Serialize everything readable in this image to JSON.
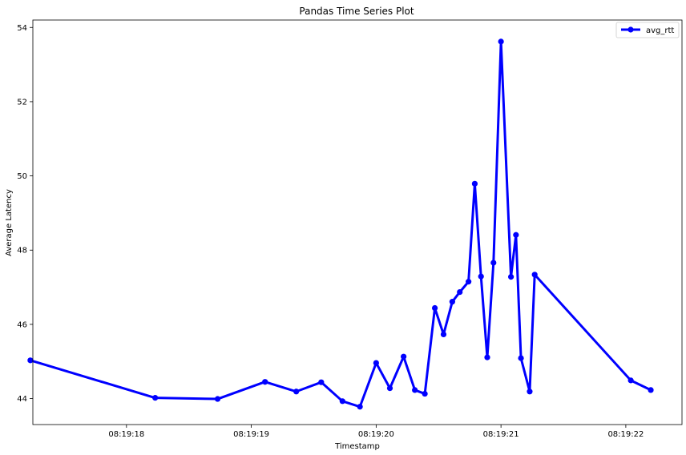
{
  "chart_data": {
    "type": "line",
    "title": "Pandas Time Series Plot",
    "xlabel": "Timestamp",
    "ylabel": "Average Latency",
    "xlim": [
      "08:19:17.25",
      "08:19:22.45"
    ],
    "ylim": [
      43.3,
      54.2
    ],
    "x_ticks": [
      "08:19:18",
      "08:19:19",
      "08:19:20",
      "08:19:21",
      "08:19:22"
    ],
    "y_ticks": [
      44,
      46,
      48,
      50,
      52,
      54
    ],
    "legend_position": "top-right",
    "grid": false,
    "series": [
      {
        "name": "avg_rtt",
        "color": "#0000ff",
        "marker": "circle",
        "x": [
          "08:19:17.230",
          "08:19:18.230",
          "08:19:18.730",
          "08:19:19.110",
          "08:19:19.360",
          "08:19:19.560",
          "08:19:19.730",
          "08:19:19.870",
          "08:19:20.000",
          "08:19:20.110",
          "08:19:20.220",
          "08:19:20.310",
          "08:19:20.390",
          "08:19:20.470",
          "08:19:20.540",
          "08:19:20.610",
          "08:19:20.670",
          "08:19:20.740",
          "08:19:20.790",
          "08:19:20.840",
          "08:19:20.890",
          "08:19:20.940",
          "08:19:21.000",
          "08:19:21.080",
          "08:19:21.120",
          "08:19:21.160",
          "08:19:21.230",
          "08:19:21.270",
          "08:19:22.040",
          "08:19:22.200"
        ],
        "values": [
          45.03,
          44.02,
          43.99,
          44.45,
          44.19,
          44.44,
          43.93,
          43.78,
          44.96,
          44.28,
          45.13,
          44.23,
          44.13,
          46.44,
          45.73,
          46.61,
          46.87,
          47.15,
          49.79,
          47.29,
          45.11,
          47.66,
          53.62,
          47.28,
          48.41,
          45.09,
          44.19,
          47.34,
          44.49,
          44.23
        ]
      }
    ]
  }
}
